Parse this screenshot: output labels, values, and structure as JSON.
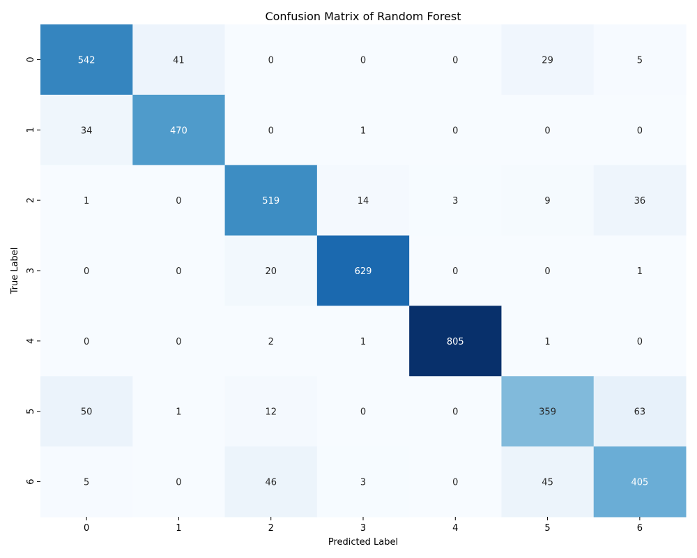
{
  "chart_data": {
    "type": "heatmap",
    "title": "Confusion Matrix of Random Forest",
    "xlabel": "Predicted Label",
    "ylabel": "True Label",
    "x_categories": [
      "0",
      "1",
      "2",
      "3",
      "4",
      "5",
      "6"
    ],
    "y_categories": [
      "0",
      "1",
      "2",
      "3",
      "4",
      "5",
      "6"
    ],
    "values": [
      [
        542,
        41,
        0,
        0,
        0,
        29,
        5
      ],
      [
        34,
        470,
        0,
        1,
        0,
        0,
        0
      ],
      [
        1,
        0,
        519,
        14,
        3,
        9,
        36
      ],
      [
        0,
        0,
        20,
        629,
        0,
        0,
        1
      ],
      [
        0,
        0,
        2,
        1,
        805,
        1,
        0
      ],
      [
        50,
        1,
        12,
        0,
        0,
        359,
        63
      ],
      [
        5,
        0,
        46,
        3,
        0,
        45,
        405
      ]
    ],
    "colormap": "Blues",
    "color_range": [
      0,
      805
    ],
    "colorbar": false,
    "grid": false
  }
}
